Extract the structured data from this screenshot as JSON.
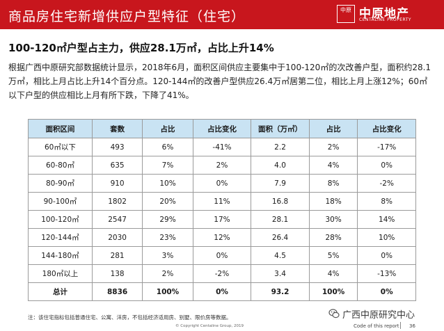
{
  "header": {
    "title": "商品房住宅新增供应户型特征（住宅）",
    "logo": {
      "seal_text": "中原",
      "name_cn": "中原地产",
      "name_en": "CENTALINE PROPERTY"
    }
  },
  "headline": "100-120㎡户型占主力，供应28.1万㎡，占比上升14%",
  "paragraph": "根据广西中原研究部数据统计显示，2018年6月，面积区间供应主要集中于100-120㎡的次改善户型，面积约28.1万㎡，相比上月占比上升14个百分点。120-144㎡的改善户型供应26.4万㎡居第二位，相比上月上涨12%；60㎡以下户型的供应相比上月有所下跌，下降了41%。",
  "table": {
    "headers": [
      "面积区间",
      "套数",
      "占比",
      "占比变化",
      "面积（万㎡）",
      "占比",
      "占比变化"
    ],
    "rows": [
      [
        "60㎡以下",
        "493",
        "6%",
        "-41%",
        "2.2",
        "2%",
        "-17%"
      ],
      [
        "60-80㎡",
        "635",
        "7%",
        "2%",
        "4.0",
        "4%",
        "0%"
      ],
      [
        "80-90㎡",
        "910",
        "10%",
        "0%",
        "7.9",
        "8%",
        "-2%"
      ],
      [
        "90-100㎡",
        "1802",
        "20%",
        "11%",
        "16.8",
        "18%",
        "8%"
      ],
      [
        "100-120㎡",
        "2547",
        "29%",
        "17%",
        "28.1",
        "30%",
        "14%"
      ],
      [
        "120-144㎡",
        "2030",
        "23%",
        "12%",
        "26.4",
        "28%",
        "10%"
      ],
      [
        "144-180㎡",
        "281",
        "3%",
        "0%",
        "4.5",
        "5%",
        "0%"
      ],
      [
        "180㎡以上",
        "138",
        "2%",
        "-2%",
        "3.4",
        "4%",
        "-13%"
      ]
    ],
    "total": [
      "总计",
      "8836",
      "100%",
      "0%",
      "93.2",
      "100%",
      "0%"
    ]
  },
  "footnote": "注：该住宅指标包括普通住宅、公寓、洋房，不包括经济适用房、别墅、限价房等数据。",
  "copyright": "© Copyright  Centaline  Group,  2019",
  "watermark": "广西中原研究中心",
  "report_code": "Code of this report",
  "page_number": "36",
  "colors": {
    "header_bg": "#c8161d",
    "table_header_bg": "#c9e3f3"
  }
}
